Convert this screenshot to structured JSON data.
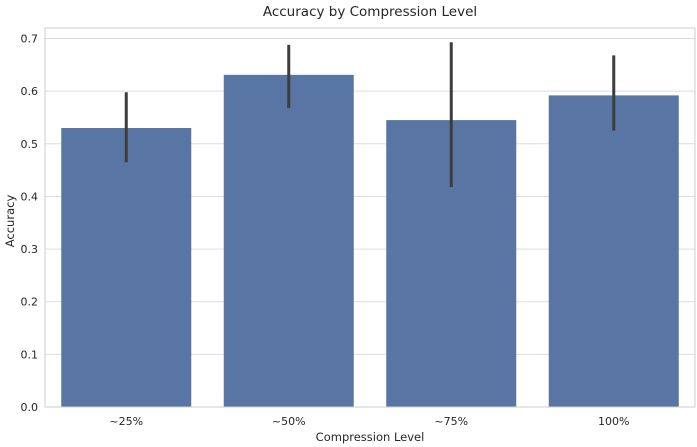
{
  "chart_data": {
    "type": "bar",
    "title": "Accuracy by Compression Level",
    "xlabel": "Compression Level",
    "ylabel": "Accuracy",
    "categories": [
      "~25%",
      "~50%",
      "~75%",
      "100%"
    ],
    "values": [
      0.53,
      0.631,
      0.545,
      0.592
    ],
    "error_low": [
      0.465,
      0.568,
      0.418,
      0.525
    ],
    "error_high": [
      0.598,
      0.688,
      0.693,
      0.668
    ],
    "ylim": [
      0,
      0.72
    ],
    "yticks": [
      0.0,
      0.1,
      0.2,
      0.3,
      0.4,
      0.5,
      0.6,
      0.7
    ],
    "ytick_labels": [
      "0.0",
      "0.1",
      "0.2",
      "0.3",
      "0.4",
      "0.5",
      "0.6",
      "0.7"
    ],
    "grid": "horizontal",
    "bar_color": "#5975a4",
    "error_color": "#3d3d3d",
    "grid_color": "#dddddd",
    "frame_color": "#cccccc"
  }
}
